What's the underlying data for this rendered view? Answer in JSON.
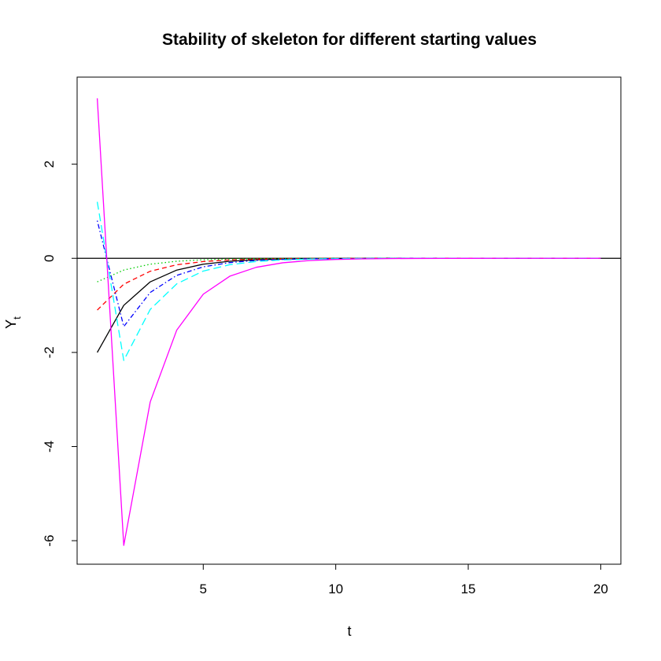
{
  "chart_data": {
    "type": "line",
    "title": "Stability of skeleton for different starting values",
    "xlabel": "t",
    "ylabel": {
      "main": "Y",
      "subscript": "t"
    },
    "xlim": [
      0.24,
      20.76
    ],
    "ylim": [
      -6.5,
      3.85
    ],
    "xticks": [
      5,
      10,
      15,
      20
    ],
    "yticks": [
      -6,
      -4,
      -2,
      0,
      2
    ],
    "x": [
      1,
      2,
      3,
      4,
      5,
      6,
      7,
      8,
      9,
      10,
      11,
      12,
      13,
      14,
      15,
      16,
      17,
      18,
      19,
      20
    ],
    "reference_line": {
      "y": 0,
      "color": "#000000"
    },
    "grid": false,
    "legend": "none",
    "series": [
      {
        "color": "#000000",
        "dash": "solid",
        "values": [
          -2.0,
          -1.0,
          -0.5,
          -0.25,
          -0.125,
          -0.0625,
          -0.03125,
          -0.015625,
          -0.0078,
          -0.0039,
          -0.002,
          -0.001,
          -0.0005,
          -0.0002,
          -0.0001,
          0,
          0,
          0,
          0,
          0
        ]
      },
      {
        "color": "#ff0000",
        "dash": "dashed",
        "values": [
          -1.1,
          -0.55,
          -0.275,
          -0.1375,
          -0.069,
          -0.034,
          -0.017,
          -0.0086,
          -0.0043,
          -0.0021,
          -0.0011,
          -0.0005,
          -0.0003,
          -0.0001,
          0,
          0,
          0,
          0,
          0,
          0
        ]
      },
      {
        "color": "#00cd00",
        "dash": "dotted",
        "values": [
          -0.5,
          -0.25,
          -0.125,
          -0.0625,
          -0.031,
          -0.016,
          -0.008,
          -0.004,
          -0.002,
          -0.001,
          -0.0005,
          -0.0002,
          -0.0001,
          0,
          0,
          0,
          0,
          0,
          0,
          0
        ]
      },
      {
        "color": "#0000ff",
        "dash": "dotdash",
        "values": [
          0.8,
          -1.45,
          -0.725,
          -0.3625,
          -0.181,
          -0.091,
          -0.045,
          -0.023,
          -0.011,
          -0.0057,
          -0.0028,
          -0.0014,
          -0.0007,
          -0.0004,
          -0.0002,
          -0.0001,
          0,
          0,
          0,
          0
        ]
      },
      {
        "color": "#00ffff",
        "dash": "longdash",
        "values": [
          1.2,
          -2.17,
          -1.085,
          -0.5425,
          -0.271,
          -0.136,
          -0.068,
          -0.034,
          -0.017,
          -0.0085,
          -0.0042,
          -0.0021,
          -0.0011,
          -0.0005,
          -0.0003,
          -0.0001,
          0,
          0,
          0,
          0
        ]
      },
      {
        "color": "#ff00ff",
        "dash": "solid",
        "values": [
          3.4,
          -6.1,
          -3.05,
          -1.525,
          -0.7625,
          -0.381,
          -0.191,
          -0.095,
          -0.048,
          -0.024,
          -0.012,
          -0.006,
          -0.003,
          -0.0015,
          -0.0007,
          -0.0004,
          -0.0002,
          -0.0001,
          0,
          0
        ]
      }
    ]
  }
}
